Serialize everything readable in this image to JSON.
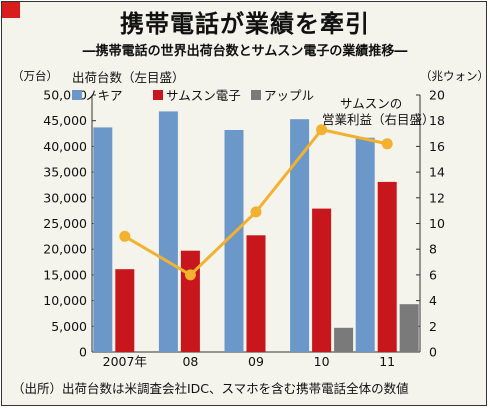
{
  "title": "携帯電話が業績を牽引",
  "subtitle": "―携帯電話の世界出荷台数とサムスン電子の業績推移―",
  "source": "（出所）出荷台数は米調査会社IDC、スマホを含む携帯電話全体の数値",
  "colors": {
    "nokia": "#6b98c8",
    "samsung": "#c8161d",
    "apple": "#7a7a7a",
    "profit": "#f2b12e",
    "accent": "#d91c1c"
  },
  "chart_data": {
    "type": "bar",
    "categories": [
      "2007年",
      "08",
      "09",
      "10",
      "11"
    ],
    "left_axis": {
      "unit": "（万台）",
      "title": "出荷台数（左目盛）",
      "ylim": [
        0,
        50000
      ],
      "ticks": [
        "0",
        "5,000",
        "10,000",
        "15,000",
        "20,000",
        "25,000",
        "30,000",
        "35,000",
        "40,000",
        "45,000",
        "50,000"
      ]
    },
    "right_axis": {
      "unit": "（兆ウォン）",
      "ylim": [
        0,
        20
      ],
      "ticks": [
        "0",
        "2",
        "4",
        "6",
        "8",
        "10",
        "12",
        "14",
        "16",
        "18",
        "20"
      ]
    },
    "series": [
      {
        "name": "ノキア",
        "type": "bar",
        "axis": "left",
        "values": [
          43700,
          46800,
          43200,
          45300,
          41700
        ]
      },
      {
        "name": "サムスン電子",
        "type": "bar",
        "axis": "left",
        "values": [
          16100,
          19700,
          22700,
          27900,
          33100
        ]
      },
      {
        "name": "アップル",
        "type": "bar",
        "axis": "left",
        "values": [
          null,
          null,
          null,
          4700,
          9300
        ]
      },
      {
        "name": "サムスンの\n営業利益（右目盛）",
        "type": "line",
        "axis": "right",
        "values": [
          9.0,
          6.0,
          10.9,
          17.3,
          16.2
        ]
      }
    ],
    "legend": [
      "ノキア",
      "サムスン電子",
      "アップル"
    ],
    "legend_position": "top-left",
    "grid": false
  }
}
